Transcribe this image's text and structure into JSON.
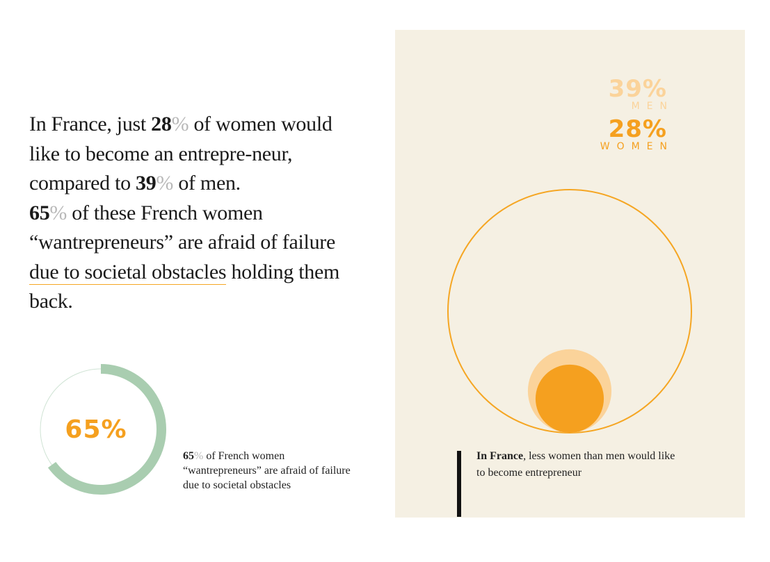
{
  "intro": {
    "line1_a": "In France, just ",
    "n1": "28",
    "pct": "%",
    "line1_b": " of women would like to become an entrepre-neur, compared to ",
    "n2": "39",
    "line2_b": " of men.",
    "n3": "65",
    "line3_b": " of these French women “wantrepreneurs” are afraid of failure ",
    "highlight": "due to societal obstacles",
    "line4_b": " holding them back."
  },
  "donut": {
    "label": "65%",
    "caption_num": "65",
    "caption_pct": "%",
    "caption_text": " of French women “wantrepreneurs” are afraid of failure due to societal obstacles"
  },
  "panel": {
    "caption_bold": "In France",
    "caption_text": ", less women than men would like to become entrepreneur"
  },
  "chart_data": [
    {
      "type": "pie",
      "categories": [
        "afraid of failure"
      ],
      "values": [
        65
      ],
      "title": "65%"
    },
    {
      "type": "bubble",
      "categories": [
        "MEN",
        "WOMEN"
      ],
      "values": [
        39,
        28
      ],
      "labels": [
        "39%",
        "28%"
      ],
      "reference": 100
    }
  ],
  "colors": {
    "accent": "#f5a01f",
    "men": "#fbd39a",
    "donut": "#a9cdb0",
    "panel_bg": "#f5f0e3"
  }
}
